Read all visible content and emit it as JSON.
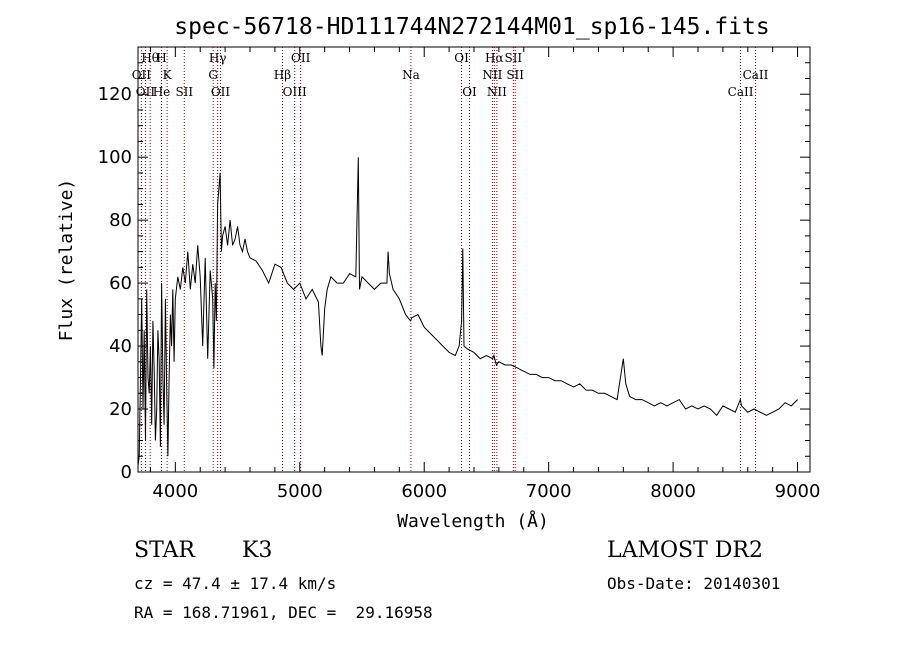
{
  "chart_data": {
    "type": "line",
    "title": "spec-56718-HD111744N272144M01_sp16-145.fits",
    "xlabel": "Wavelength (Å)",
    "ylabel": "Flux (relative)",
    "xlim": [
      3700,
      9100
    ],
    "ylim": [
      0,
      135
    ],
    "xticks": [
      4000,
      5000,
      6000,
      7000,
      8000,
      9000
    ],
    "yticks": [
      0,
      20,
      40,
      60,
      80,
      100,
      120
    ],
    "grid": false,
    "series": [
      {
        "color": "#000000",
        "x": [
          3700,
          3710,
          3720,
          3730,
          3740,
          3750,
          3760,
          3770,
          3780,
          3790,
          3800,
          3810,
          3820,
          3830,
          3840,
          3850,
          3860,
          3870,
          3880,
          3890,
          3900,
          3910,
          3920,
          3930,
          3940,
          3950,
          3960,
          3970,
          3980,
          3990,
          4000,
          4020,
          4040,
          4060,
          4080,
          4100,
          4120,
          4140,
          4160,
          4180,
          4200,
          4220,
          4240,
          4260,
          4280,
          4300,
          4310,
          4320,
          4330,
          4340,
          4350,
          4360,
          4370,
          4380,
          4400,
          4420,
          4440,
          4460,
          4480,
          4500,
          4520,
          4540,
          4560,
          4580,
          4600,
          4650,
          4700,
          4750,
          4800,
          4850,
          4900,
          4950,
          5000,
          5050,
          5100,
          5150,
          5170,
          5180,
          5200,
          5220,
          5250,
          5300,
          5350,
          5400,
          5450,
          5470,
          5480,
          5500,
          5550,
          5600,
          5650,
          5700,
          5710,
          5720,
          5750,
          5800,
          5850,
          5890,
          5900,
          5950,
          6000,
          6050,
          6100,
          6150,
          6200,
          6250,
          6280,
          6300,
          6310,
          6320,
          6350,
          6400,
          6450,
          6500,
          6550,
          6560,
          6580,
          6600,
          6650,
          6700,
          6750,
          6800,
          6850,
          6900,
          6950,
          7000,
          7050,
          7100,
          7150,
          7200,
          7250,
          7300,
          7350,
          7400,
          7450,
          7500,
          7550,
          7600,
          7620,
          7650,
          7700,
          7750,
          7800,
          7850,
          7900,
          7950,
          8000,
          8050,
          8100,
          8150,
          8200,
          8250,
          8300,
          8350,
          8400,
          8450,
          8500,
          8540,
          8550,
          8600,
          8650,
          8700,
          8750,
          8800,
          8850,
          8900,
          8950,
          9000
        ],
        "y": [
          2,
          5,
          30,
          55,
          20,
          45,
          10,
          58,
          30,
          25,
          40,
          15,
          48,
          32,
          10,
          20,
          45,
          35,
          8,
          60,
          30,
          15,
          55,
          28,
          5,
          30,
          50,
          40,
          58,
          35,
          55,
          62,
          58,
          65,
          60,
          70,
          58,
          66,
          60,
          72,
          62,
          40,
          68,
          36,
          64,
          55,
          33,
          60,
          48,
          85,
          90,
          95,
          70,
          75,
          78,
          72,
          80,
          72,
          74,
          78,
          72,
          70,
          74,
          70,
          68,
          67,
          64,
          60,
          66,
          65,
          60,
          58,
          60,
          55,
          58,
          54,
          40,
          37,
          52,
          58,
          62,
          60,
          60,
          63,
          62,
          100,
          58,
          62,
          60,
          58,
          60,
          60,
          70,
          63,
          58,
          55,
          50,
          48,
          49,
          50,
          46,
          44,
          42,
          40,
          38,
          37,
          40,
          48,
          71,
          40,
          39,
          38,
          36,
          37,
          36,
          37,
          34,
          35,
          34,
          34,
          33,
          32,
          31,
          31,
          30,
          30,
          29,
          29,
          28,
          27,
          28,
          26,
          26,
          25,
          25,
          24,
          23,
          36,
          28,
          24,
          23,
          23,
          22,
          21,
          22,
          21,
          22,
          23,
          20,
          21,
          20,
          21,
          20,
          18,
          21,
          20,
          19,
          23,
          21,
          19,
          20,
          19,
          18,
          19,
          20,
          22,
          21,
          23
        ]
      }
    ],
    "line_markers": [
      {
        "label": "Hθ",
        "x": 3798,
        "row": 1,
        "color": "#8b0000"
      },
      {
        "label": "H",
        "x": 3889,
        "row": 1,
        "color": "#8b0000"
      },
      {
        "label": "Hγ",
        "x": 4340,
        "row": 1,
        "color": "#8b0000"
      },
      {
        "label": "OII",
        "x": 5007,
        "row": 1,
        "color": "#8b0000"
      },
      {
        "label": "OI",
        "x": 6300,
        "row": 1,
        "color": "#8b0000"
      },
      {
        "label": "Hα",
        "x": 6563,
        "row": 1,
        "color": "#8b0000"
      },
      {
        "label": "SII",
        "x": 6716,
        "row": 1,
        "color": "#8b0000"
      },
      {
        "label": "OII",
        "x": 3727,
        "row": 2,
        "color": "#8b0000"
      },
      {
        "label": "K",
        "x": 3934,
        "row": 2,
        "color": "#8b0000"
      },
      {
        "label": "G",
        "x": 4304,
        "row": 2,
        "color": "#8b0000"
      },
      {
        "label": "Hβ",
        "x": 4861,
        "row": 2,
        "color": "#8b0000"
      },
      {
        "label": "Na",
        "x": 5893,
        "row": 2,
        "color": "#8b0000"
      },
      {
        "label": "NII",
        "x": 6548,
        "row": 2,
        "color": "#8b0000"
      },
      {
        "label": "SII",
        "x": 6731,
        "row": 2,
        "color": "#8b0000"
      },
      {
        "label": "CaII",
        "x": 8662,
        "row": 2,
        "color": "#8b0000"
      },
      {
        "label": "OII",
        "x": 3760,
        "row": 3,
        "color": "#8b0000"
      },
      {
        "label": "He",
        "x": 3889,
        "row": 3,
        "color": "#8b0000"
      },
      {
        "label": "SII",
        "x": 4072,
        "row": 3,
        "color": "#8b0000"
      },
      {
        "label": "OII",
        "x": 4363,
        "row": 3,
        "color": "#8b0000"
      },
      {
        "label": "OIII",
        "x": 4959,
        "row": 3,
        "color": "#8b0000"
      },
      {
        "label": "OI",
        "x": 6364,
        "row": 3,
        "color": "#8b0000"
      },
      {
        "label": "NII",
        "x": 6584,
        "row": 3,
        "color": "#8b0000"
      },
      {
        "label": "CaII",
        "x": 8542,
        "row": 3,
        "color": "#8b0000"
      }
    ]
  },
  "info": {
    "class": "STAR",
    "subclass": "K3",
    "survey": "LAMOST DR2",
    "cz": "cz = 47.4 ± 17.4 km/s",
    "obs_date": "Obs-Date: 20140301",
    "coords": "RA = 168.71961, DEC =  29.16958"
  }
}
